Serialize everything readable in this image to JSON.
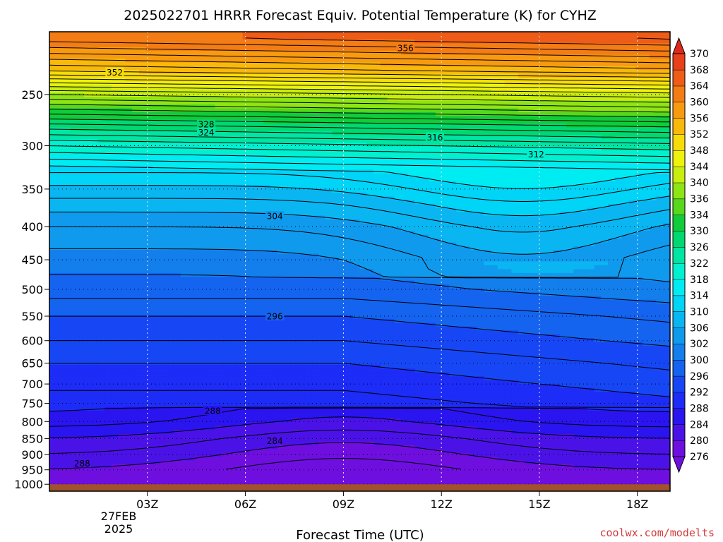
{
  "chart_data": {
    "type": "heatmap",
    "title": "2025022701 HRRR Forecast Equiv. Potential Temperature (K) for CYHZ",
    "xlabel": "Forecast Time (UTC)",
    "ylabel": "",
    "x_ticks": [
      "03Z",
      "06Z",
      "09Z",
      "12Z",
      "15Z",
      "18Z"
    ],
    "x_tick_hours": [
      3,
      6,
      9,
      12,
      15,
      18
    ],
    "date_labels": [
      "27FEB",
      "2025"
    ],
    "xlim_hours": [
      0,
      19
    ],
    "y_ticks": [
      250,
      300,
      350,
      400,
      450,
      500,
      550,
      600,
      650,
      700,
      750,
      800,
      850,
      900,
      950,
      1000
    ],
    "ylim": [
      200,
      1025
    ],
    "y_scale": "log-pressure (inverted)",
    "grid": true,
    "colorbar_levels": [
      276,
      280,
      284,
      288,
      292,
      296,
      300,
      302,
      306,
      310,
      314,
      318,
      322,
      326,
      330,
      334,
      336,
      340,
      344,
      348,
      352,
      356,
      360,
      364,
      368,
      370
    ],
    "colorbar_colors": [
      "#6e0fe0",
      "#4b12e8",
      "#2a14f0",
      "#1d2cf6",
      "#1747f5",
      "#1464f0",
      "#127fec",
      "#109aee",
      "#0ab6f2",
      "#00d4f7",
      "#00ecf3",
      "#00f0d0",
      "#00e6a2",
      "#00d870",
      "#10cc3a",
      "#56d81c",
      "#8ee514",
      "#c8ee10",
      "#eef20c",
      "#f8dc0a",
      "#f9b90a",
      "#f89a10",
      "#f47c14",
      "#ef5c18",
      "#e8401a",
      "#e02818"
    ],
    "colorbar_placement": "right",
    "contour_interval": 2,
    "contour_labels": [
      {
        "value": "356",
        "hour": 10.9,
        "pressure": 212
      },
      {
        "value": "352",
        "hour": 2.0,
        "pressure": 231
      },
      {
        "value": "328",
        "hour": 4.8,
        "pressure": 278
      },
      {
        "value": "324",
        "hour": 4.8,
        "pressure": 286
      },
      {
        "value": "316",
        "hour": 11.8,
        "pressure": 291
      },
      {
        "value": "312",
        "hour": 14.9,
        "pressure": 309
      },
      {
        "value": "304",
        "hour": 6.9,
        "pressure": 385
      },
      {
        "value": "296",
        "hour": 6.9,
        "pressure": 550
      },
      {
        "value": "288",
        "hour": 5.0,
        "pressure": 770
      },
      {
        "value": "284",
        "hour": 6.9,
        "pressure": 857
      },
      {
        "value": "288",
        "hour": 1.0,
        "pressure": 928
      }
    ],
    "ground": {
      "pressure": 1000,
      "color": "#a0522d"
    },
    "credit": "coolwx.com/modelts"
  }
}
